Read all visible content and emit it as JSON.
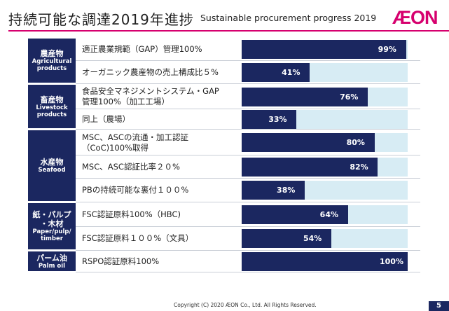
{
  "header": {
    "title_jp": "持続可能な調達2019年進捗",
    "title_en": "Sustainable procurement progress 2019",
    "logo_text": "ÆON",
    "accent_color": "#d6006e"
  },
  "colors": {
    "navy": "#1b2760",
    "track": "#d7ecf4"
  },
  "groups": [
    {
      "name_jp": "農産物",
      "name_en": "Agricultural\nproducts",
      "rows": [
        {
          "label": "適正農業規範（GAP）管理100%",
          "value": 99,
          "display": "99%"
        },
        {
          "label": "オーガニック農産物の売上構成比５%",
          "value": 41,
          "display": "41%"
        }
      ]
    },
    {
      "name_jp": "畜産物",
      "name_en": "Livestock\nproducts",
      "rows": [
        {
          "label": "食品安全マネジメントシステム・GAP\n管理100%（加工工場）",
          "value": 76,
          "display": "76%"
        },
        {
          "label": "同上（農場）",
          "value": 33,
          "display": "33%"
        }
      ]
    },
    {
      "name_jp": "水産物",
      "name_en": "Seafood",
      "rows": [
        {
          "label": "MSC、ASCの流通・加工認証\n（CoC)100%取得",
          "value": 80,
          "display": "80%"
        },
        {
          "label": "MSC、ASC認証比率２０%",
          "value": 82,
          "display": "82%"
        },
        {
          "label": "PBの持続可能な裏付１００%",
          "value": 38,
          "display": "38%"
        }
      ]
    },
    {
      "name_jp": "紙・パルプ\n・木材",
      "name_en": "Paper/pulp/\ntimber",
      "rows": [
        {
          "label": "FSC認証原料100%（HBC)",
          "value": 64,
          "display": "64%"
        },
        {
          "label": "FSC認証原料１００%（文具）",
          "value": 54,
          "display": "54%"
        }
      ]
    },
    {
      "name_jp": "パーム油",
      "name_en": "Palm oil",
      "rows": [
        {
          "label": "RSPO認証原料100%",
          "value": 100,
          "display": "100%"
        }
      ]
    }
  ],
  "footer": {
    "copyright": "Copyright (C) 2020 ÆON Co., Ltd.  All Rights Reserved.",
    "page": "5"
  }
}
